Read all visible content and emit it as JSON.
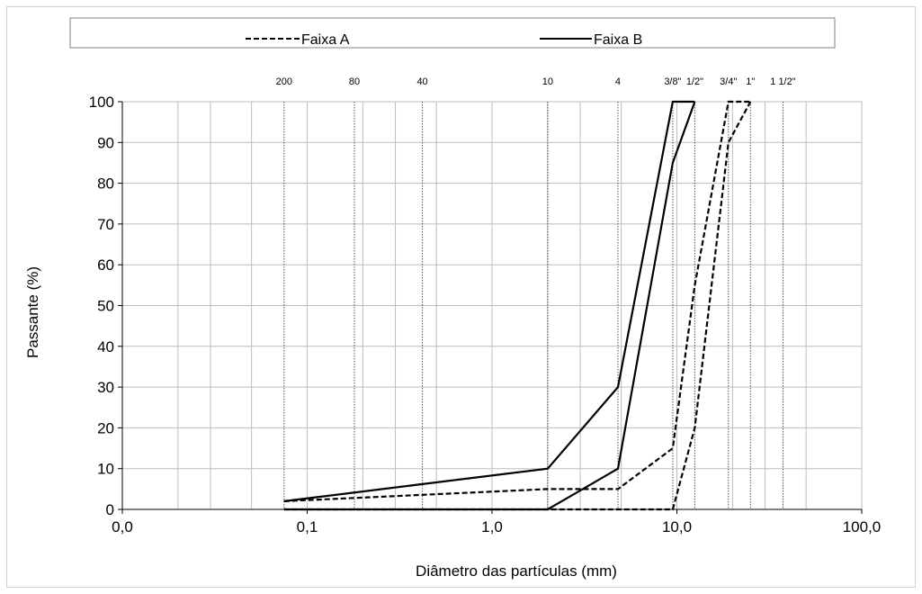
{
  "chart_data": {
    "type": "line",
    "xscale": "log",
    "xlim": [
      0.01,
      100
    ],
    "ylim": [
      0,
      100
    ],
    "xlabel": "Diâmetro das partículas (mm)",
    "ylabel": "Passante (%)",
    "x_ticks": [
      {
        "value": 0.01,
        "label": "0,0"
      },
      {
        "value": 0.1,
        "label": "0,1"
      },
      {
        "value": 1,
        "label": "1,0"
      },
      {
        "value": 10,
        "label": "10,0"
      },
      {
        "value": 100,
        "label": "100,0"
      }
    ],
    "y_ticks": [
      0,
      10,
      20,
      30,
      40,
      50,
      60,
      70,
      80,
      90,
      100
    ],
    "sieves": [
      {
        "label": "200",
        "value": 0.075
      },
      {
        "label": "80",
        "value": 0.18
      },
      {
        "label": "40",
        "value": 0.42
      },
      {
        "label": "10",
        "value": 2.0
      },
      {
        "label": "4",
        "value": 4.8
      },
      {
        "label": "3/8\"",
        "value": 9.5
      },
      {
        "label": "1/2\"",
        "value": 12.5
      },
      {
        "label": "3/4\"",
        "value": 19.0
      },
      {
        "label": "1\"",
        "value": 25.0
      },
      {
        "label": "1 1/2\"",
        "value": 37.5
      }
    ],
    "legend": {
      "position": "top"
    },
    "series": [
      {
        "name": "Faixa A",
        "style": "dashed",
        "color": "#000000",
        "lines": [
          {
            "x": [
              0.075,
              2.0,
              4.8,
              9.5,
              12.5,
              19.0,
              25.0
            ],
            "y": [
              2,
              5,
              5,
              15,
              55,
              100,
              100
            ]
          },
          {
            "x": [
              0.075,
              2.0,
              4.8,
              9.5,
              12.5,
              19.0,
              25.0
            ],
            "y": [
              0,
              0,
              0,
              0,
              20,
              90,
              100
            ]
          }
        ]
      },
      {
        "name": "Faixa B",
        "style": "solid",
        "color": "#000000",
        "lines": [
          {
            "x": [
              0.075,
              2.0,
              4.8,
              9.5,
              12.5
            ],
            "y": [
              2,
              10,
              30,
              100,
              100
            ]
          },
          {
            "x": [
              0.075,
              2.0,
              4.8,
              9.5,
              12.5
            ],
            "y": [
              0,
              0,
              10,
              85,
              100
            ]
          }
        ]
      }
    ]
  }
}
